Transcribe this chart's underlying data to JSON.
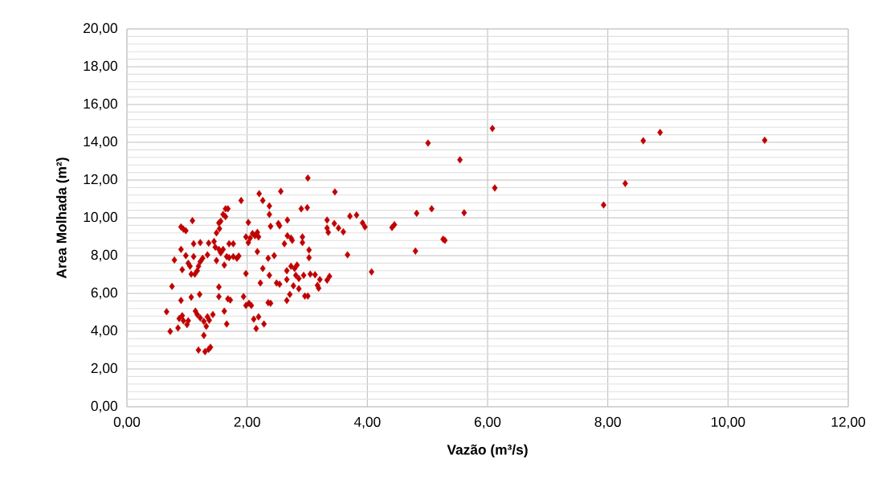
{
  "chart_data": {
    "type": "scatter",
    "xlabel": "Vazão (m³/s)",
    "ylabel": "Area Molhada (m²)",
    "xlim": [
      0,
      12
    ],
    "ylim": [
      0,
      20
    ],
    "xticks": [
      {
        "value": 0,
        "label": "0,00"
      },
      {
        "value": 2,
        "label": "2,00"
      },
      {
        "value": 4,
        "label": "4,00"
      },
      {
        "value": 6,
        "label": "6,00"
      },
      {
        "value": 8,
        "label": "8,00"
      },
      {
        "value": 10,
        "label": "10,00"
      },
      {
        "value": 12,
        "label": "12,00"
      }
    ],
    "yticks": [
      {
        "value": 0,
        "label": "0,00"
      },
      {
        "value": 2,
        "label": "2,00"
      },
      {
        "value": 4,
        "label": "4,00"
      },
      {
        "value": 6,
        "label": "6,00"
      },
      {
        "value": 8,
        "label": "8,00"
      },
      {
        "value": 10,
        "label": "10,00"
      },
      {
        "value": 12,
        "label": "12,00"
      },
      {
        "value": 14,
        "label": "14,00"
      },
      {
        "value": 16,
        "label": "16,00"
      },
      {
        "value": 18,
        "label": "18,00"
      },
      {
        "value": 20,
        "label": "20,00"
      }
    ],
    "grid": true,
    "marker": "diamond",
    "legend": false,
    "series": [
      {
        "color": "#c00000",
        "x": [
          0.66,
          0.72,
          0.75,
          0.79,
          0.85,
          0.9,
          0.94,
          0.98,
          0.9,
          0.92,
          0.9,
          0.92,
          0.87,
          0.94,
          1.0,
          1.02,
          0.98,
          1.02,
          1.05,
          1.09,
          1.11,
          1.11,
          1.07,
          1.13,
          1.17,
          1.19,
          1.07,
          1.14,
          1.17,
          1.21,
          1.22,
          1.26,
          1.22,
          1.19,
          1.28,
          1.3,
          1.36,
          1.39,
          1.22,
          1.28,
          1.32,
          1.34,
          1.37,
          1.43,
          1.34,
          1.36,
          1.45,
          1.49,
          1.53,
          1.56,
          1.54,
          1.6,
          1.64,
          1.68,
          1.64,
          1.47,
          1.53,
          1.49,
          1.56,
          1.6,
          1.62,
          1.66,
          1.7,
          1.7,
          1.77,
          1.77,
          1.83,
          1.86,
          1.53,
          1.53,
          1.62,
          1.68,
          1.72,
          1.66,
          1.9,
          1.94,
          1.98,
          1.98,
          2.02,
          2.02,
          2.05,
          2.09,
          2.13,
          2.17,
          2.19,
          2.17,
          1.98,
          2.03,
          2.07,
          2.11,
          2.15,
          2.19,
          2.2,
          2.26,
          2.22,
          2.26,
          2.28,
          2.35,
          2.39,
          2.35,
          2.37,
          2.37,
          2.37,
          2.39,
          2.45,
          2.49,
          2.54,
          2.54,
          2.52,
          2.56,
          2.62,
          2.66,
          2.67,
          2.67,
          2.66,
          2.66,
          2.71,
          2.73,
          2.73,
          2.75,
          2.77,
          2.79,
          2.81,
          2.83,
          2.86,
          2.86,
          2.9,
          2.92,
          2.92,
          2.94,
          2.96,
          3.0,
          3.01,
          3.01,
          3.03,
          3.03,
          3.05,
          3.13,
          3.17,
          3.19,
          3.21,
          3.33,
          3.33,
          3.35,
          3.33,
          3.37,
          3.45,
          3.46,
          3.52,
          3.6,
          3.67,
          3.71,
          3.82,
          3.92,
          3.96,
          4.07,
          4.41,
          4.45,
          4.8,
          4.82,
          5.01,
          5.07,
          5.26,
          5.29,
          5.54,
          5.61,
          6.08,
          6.12,
          7.93,
          8.29,
          8.59,
          8.87,
          10.61
        ],
        "values": [
          5.03,
          3.99,
          6.37,
          7.77,
          4.17,
          9.52,
          9.4,
          9.32,
          8.33,
          7.26,
          5.63,
          4.82,
          4.67,
          4.55,
          4.35,
          4.55,
          8.0,
          7.6,
          7.44,
          9.85,
          8.63,
          7.95,
          7.02,
          7.02,
          7.2,
          7.44,
          5.8,
          5.06,
          4.88,
          5.95,
          8.69,
          7.86,
          7.68,
          3.0,
          3.78,
          2.92,
          3.04,
          3.15,
          4.7,
          4.52,
          4.26,
          4.76,
          4.58,
          4.88,
          8.04,
          8.66,
          8.75,
          9.2,
          9.73,
          9.82,
          9.43,
          10.18,
          10.48,
          10.48,
          10.06,
          8.45,
          8.33,
          7.74,
          8.15,
          8.33,
          7.5,
          7.95,
          8.63,
          7.89,
          8.63,
          7.95,
          7.86,
          7.98,
          6.34,
          5.83,
          5.06,
          5.71,
          5.65,
          4.38,
          10.92,
          5.83,
          8.99,
          7.05,
          9.76,
          8.69,
          8.93,
          9.17,
          9.05,
          9.23,
          8.99,
          8.21,
          5.36,
          5.48,
          5.36,
          4.64,
          4.14,
          4.76,
          11.28,
          10.92,
          6.55,
          7.32,
          4.38,
          5.51,
          5.48,
          7.86,
          6.96,
          10.63,
          10.18,
          9.55,
          8.0,
          6.55,
          6.49,
          9.58,
          9.7,
          11.4,
          8.63,
          7.2,
          9.88,
          9.05,
          6.73,
          5.63,
          5.95,
          7.44,
          8.93,
          8.81,
          6.4,
          7.32,
          6.96,
          7.5,
          6.79,
          6.25,
          10.48,
          8.99,
          8.69,
          6.96,
          5.86,
          10.54,
          5.86,
          12.11,
          8.3,
          7.89,
          7.02,
          6.99,
          6.43,
          6.28,
          6.73,
          9.88,
          9.46,
          9.23,
          6.7,
          6.9,
          9.7,
          11.37,
          9.46,
          9.26,
          8.04,
          10.09,
          10.15,
          9.73,
          9.52,
          7.14,
          9.49,
          9.64,
          8.24,
          10.24,
          13.96,
          10.48,
          8.87,
          8.81,
          13.07,
          10.27,
          14.73,
          11.58,
          10.68,
          11.82,
          14.08,
          14.52,
          14.11
        ]
      }
    ]
  }
}
